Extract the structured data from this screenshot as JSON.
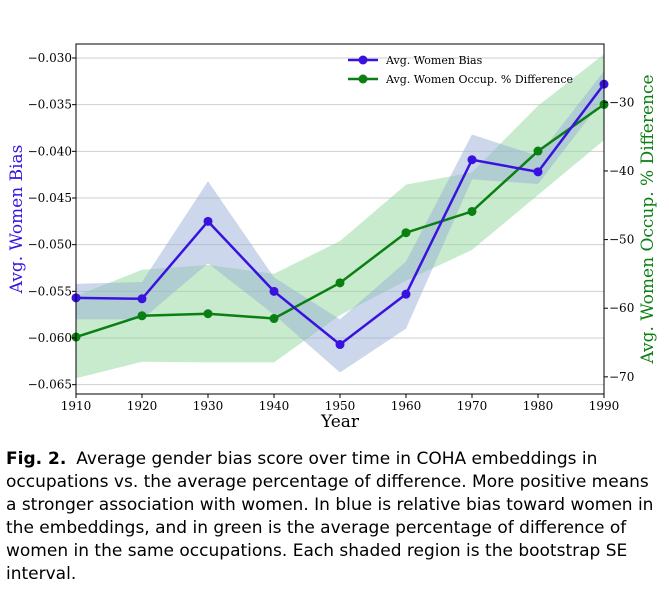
{
  "chart_data": {
    "type": "line",
    "xlabel": "Year",
    "ylabel_left": "Avg. Women Bias",
    "ylabel_right": "Avg. Women Occup. % Difference",
    "x": [
      1910,
      1920,
      1930,
      1940,
      1950,
      1960,
      1970,
      1980,
      1990
    ],
    "xlim": [
      1910,
      1990
    ],
    "ylim_left": [
      -0.066,
      -0.0285
    ],
    "ylim_right": [
      -72.5,
      -21.5
    ],
    "x_ticks": [
      "1910",
      "1920",
      "1930",
      "1940",
      "1950",
      "1960",
      "1970",
      "1980",
      "1990"
    ],
    "y_ticks_left": [
      "−0.030",
      "−0.035",
      "−0.040",
      "−0.045",
      "−0.050",
      "−0.055",
      "−0.060",
      "−0.065"
    ],
    "y_ticks_right": [
      "−30",
      "−40",
      "−50",
      "−60",
      "−70"
    ],
    "grid": true,
    "legend_position": "top-right",
    "series": [
      {
        "name": "Avg. Women Bias",
        "axis": "left",
        "color": "#3a12e0",
        "band_color": "#9ab0d8",
        "values": [
          -0.0557,
          -0.0558,
          -0.0475,
          -0.055,
          -0.0607,
          -0.0553,
          -0.0409,
          -0.0422,
          -0.0328
        ],
        "lower": [
          -0.058,
          -0.058,
          -0.052,
          -0.0575,
          -0.0637,
          -0.059,
          -0.043,
          -0.0435,
          -0.0343
        ],
        "upper": [
          -0.0542,
          -0.054,
          -0.0432,
          -0.0535,
          -0.058,
          -0.0518,
          -0.0382,
          -0.0405,
          -0.0314
        ]
      },
      {
        "name": "Avg. Women Occup. % Difference",
        "axis": "right",
        "color": "#0a7f12",
        "band_color": "#8fd89a",
        "values": [
          -64.2,
          -61.1,
          -60.8,
          -61.5,
          -56.3,
          -49.0,
          -45.9,
          -37.1,
          -30.3
        ],
        "lower": [
          -70.2,
          -67.8,
          -67.9,
          -67.9,
          -61.0,
          -56.0,
          -51.5,
          -43.5,
          -35.5
        ],
        "upper": [
          -58.2,
          -54.4,
          -53.7,
          -55.0,
          -50.2,
          -42.0,
          -40.2,
          -30.5,
          -23.0
        ]
      }
    ]
  },
  "caption": {
    "label": "Fig. 2.",
    "text": "Average gender bias score over time in COHA embeddings in occupations vs. the average percentage of difference. More positive means a stronger association with women. In blue is relative bias toward women in the embeddings, and in green is the average percentage of difference of women in the same occupations. Each shaded region is the bootstrap SE interval."
  }
}
